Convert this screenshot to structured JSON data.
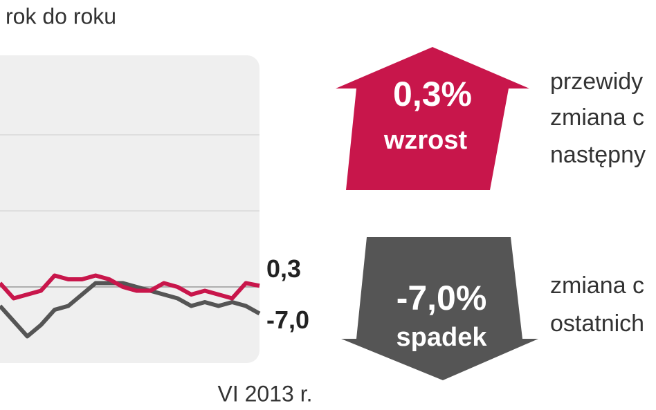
{
  "chart_data": {
    "type": "line",
    "title": "rok do roku",
    "categories": [
      null,
      null,
      null,
      null,
      null,
      null,
      null,
      null,
      null,
      null,
      null,
      null,
      null,
      null,
      null,
      null,
      null,
      null,
      null,
      "VI 2013 r."
    ],
    "series": [
      {
        "name": null,
        "color": "#c8164b",
        "values": [
          1,
          -3,
          -2,
          -1,
          3,
          2,
          2,
          3,
          2,
          0,
          -1,
          -1,
          1,
          0,
          -2,
          -1,
          -2,
          -3,
          1,
          0.3
        ],
        "value_labels": [
          null,
          null,
          null,
          null,
          null,
          null,
          null,
          null,
          null,
          null,
          null,
          null,
          null,
          null,
          null,
          null,
          null,
          null,
          null,
          "0,3"
        ]
      },
      {
        "name": null,
        "color": "#555555",
        "values": [
          -5,
          -9,
          -13,
          -10,
          -6,
          -5,
          -2,
          1,
          1,
          1,
          0,
          -1,
          -2,
          -3,
          -5,
          -4,
          -5,
          -4,
          -5,
          -7
        ],
        "value_labels": [
          null,
          null,
          null,
          null,
          null,
          null,
          null,
          null,
          null,
          null,
          null,
          null,
          null,
          null,
          null,
          null,
          null,
          null,
          null,
          "-7,0"
        ]
      }
    ],
    "ylim": [
      -20,
      60
    ],
    "yticks": [
      0,
      20,
      40
    ],
    "grid": true,
    "annotations": {
      "up": {
        "value": "0,3%",
        "label": "wzrost",
        "color": "#c8164b",
        "text": [
          "przewidy",
          "zmiana c",
          "następny"
        ]
      },
      "down": {
        "value": "-7,0%",
        "label": "spadek",
        "color": "#555555",
        "text": [
          "zmiana c",
          "ostatnich"
        ]
      }
    }
  }
}
